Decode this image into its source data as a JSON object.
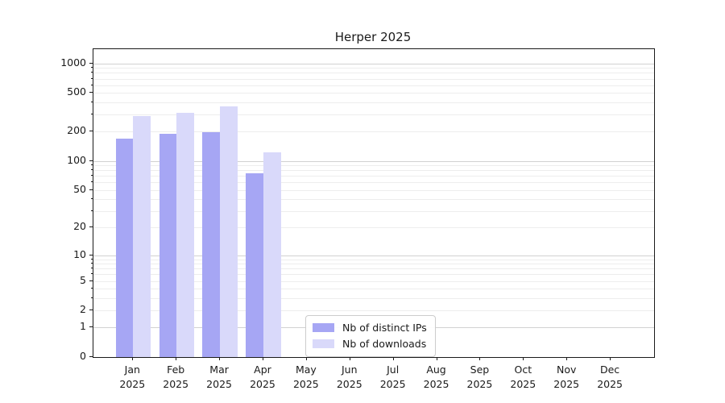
{
  "chart_data": {
    "type": "bar",
    "title": "Herper 2025",
    "categories": [
      "Jan",
      "Feb",
      "Mar",
      "Apr",
      "May",
      "Jun",
      "Jul",
      "Aug",
      "Sep",
      "Oct",
      "Nov",
      "Dec"
    ],
    "x_year_line": "2025",
    "series": [
      {
        "name": "Nb of distinct IPs",
        "color": "#a6a6f4",
        "values": [
          170,
          190,
          196,
          74,
          0,
          0,
          0,
          0,
          0,
          0,
          0,
          0
        ]
      },
      {
        "name": "Nb of downloads",
        "color": "#d9d9fa",
        "values": [
          290,
          313,
          365,
          123,
          0,
          0,
          0,
          0,
          0,
          0,
          0,
          0
        ]
      }
    ],
    "y_ticks": [
      1000,
      500,
      200,
      100,
      50,
      20,
      10,
      5,
      2,
      1,
      0
    ],
    "y_scale": "log10(value+1)",
    "ylim": [
      0,
      1400
    ],
    "xlabel": "",
    "ylabel": "",
    "grid": true,
    "legend_position": "lower center"
  },
  "colors": {
    "bar_distinct_ips": "#a6a6f4",
    "bar_downloads": "#d9d9fa",
    "grid_major": "#d2d2d2",
    "grid_minor": "#ededed",
    "axis": "#1a1a1a"
  }
}
